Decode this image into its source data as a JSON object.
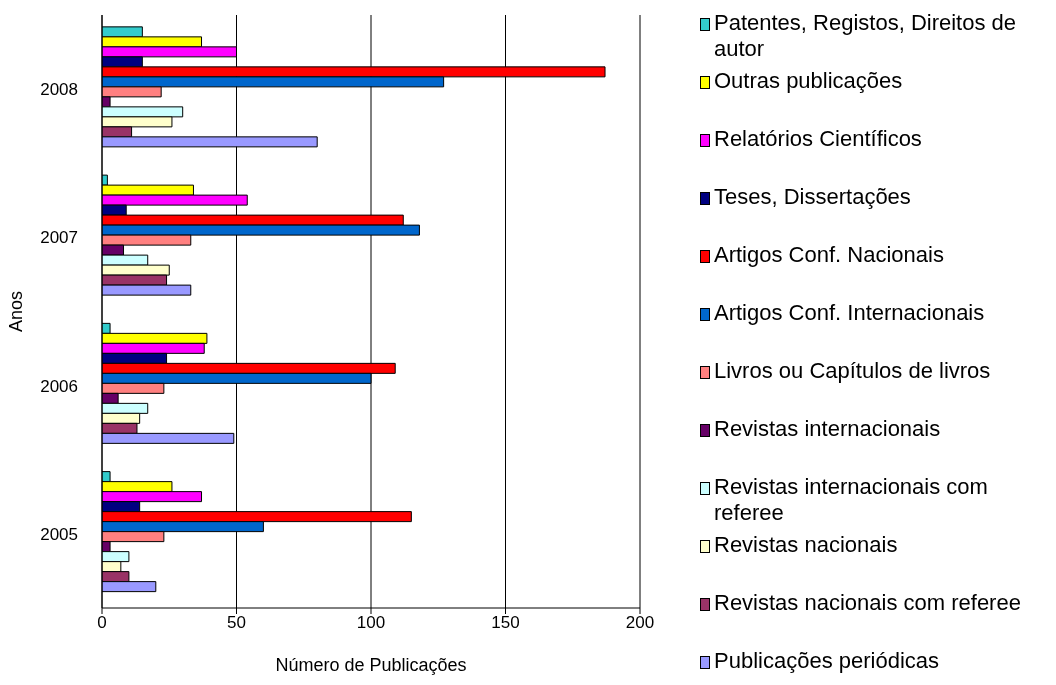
{
  "chart_data": {
    "type": "bar",
    "orientation": "horizontal",
    "xlabel": "Número de Publicações",
    "ylabel": "Anos",
    "categories": [
      "2008",
      "2007",
      "2006",
      "2005"
    ],
    "xlim": [
      0,
      200
    ],
    "xticks": [
      0,
      50,
      100,
      150,
      200
    ],
    "grid": "x",
    "legend": "right",
    "series": [
      {
        "name": "Patentes, Registos, Direitos de autor",
        "color": "#33cccc",
        "values": [
          15,
          2,
          3,
          3
        ]
      },
      {
        "name": "Outras publicações",
        "color": "#ffff00",
        "values": [
          37,
          34,
          39,
          26
        ]
      },
      {
        "name": "Relatórios Científicos",
        "color": "#ff00ff",
        "values": [
          50,
          54,
          38,
          37
        ]
      },
      {
        "name": "Teses, Dissertações",
        "color": "#000080",
        "values": [
          15,
          9,
          24,
          14
        ]
      },
      {
        "name": "Artigos Conf. Nacionais",
        "color": "#ff0000",
        "values": [
          187,
          112,
          109,
          115
        ]
      },
      {
        "name": "Artigos Conf. Internacionais",
        "color": "#0066cc",
        "values": [
          127,
          118,
          100,
          60
        ]
      },
      {
        "name": "Livros ou Capítulos de livros",
        "color": "#ff8080",
        "values": [
          22,
          33,
          23,
          23
        ]
      },
      {
        "name": "Revistas internacionais",
        "color": "#660066",
        "values": [
          3,
          8,
          6,
          3
        ]
      },
      {
        "name": "Revistas internacionais com referee",
        "color": "#ccffff",
        "values": [
          30,
          17,
          17,
          10
        ]
      },
      {
        "name": "Revistas nacionais",
        "color": "#ffffcc",
        "values": [
          26,
          25,
          14,
          7
        ]
      },
      {
        "name": "Revistas nacionais com referee",
        "color": "#993366",
        "values": [
          11,
          24,
          13,
          10
        ]
      },
      {
        "name": "Publicações periódicas",
        "color": "#9999ff",
        "values": [
          80,
          33,
          49,
          20
        ]
      }
    ]
  }
}
